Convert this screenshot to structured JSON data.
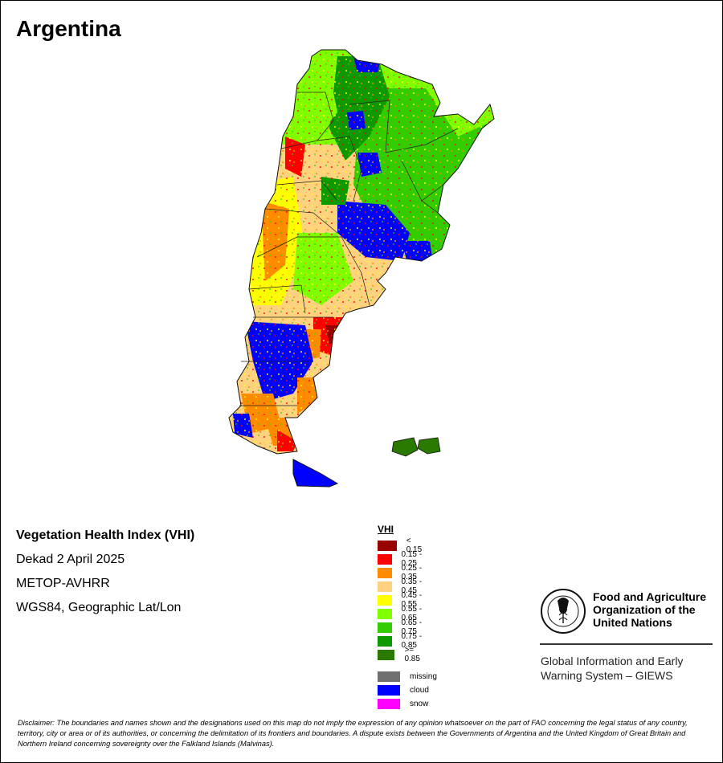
{
  "map_title": "Argentina",
  "info": {
    "index_name": "Vegetation Health Index (VHI)",
    "period": "Dekad 2 April 2025",
    "sensor": "METOP-AVHRR",
    "projection": "WGS84, Geographic Lat/Lon"
  },
  "legend": {
    "title": "VHI",
    "classes": [
      {
        "label": "< 0.15",
        "color": "#990000"
      },
      {
        "label": "0.15 - 0.25",
        "color": "#ff0000"
      },
      {
        "label": "0.25 - 0.35",
        "color": "#ff8c00"
      },
      {
        "label": "0.35 - 0.45",
        "color": "#ffd27f"
      },
      {
        "label": "0.45 - 0.55",
        "color": "#ffff00"
      },
      {
        "label": "0.55 - 0.65",
        "color": "#80ff00"
      },
      {
        "label": "0.65 - 0.75",
        "color": "#33cc00"
      },
      {
        "label": "0.75 - 0.85",
        "color": "#0f9900"
      },
      {
        "label": ">= 0.85",
        "color": "#2b7a00"
      }
    ],
    "other": [
      {
        "label": "missing",
        "color": "#707070"
      },
      {
        "label": "cloud",
        "color": "#0000ff"
      },
      {
        "label": "snow",
        "color": "#ff00ff"
      }
    ]
  },
  "organization": {
    "logo_text": "FAO",
    "logo_ring_text": "FIAT PANIS",
    "name_lines": [
      "Food and Agriculture",
      "Organization of the",
      "United Nations"
    ],
    "system_lines": [
      "Global Information and Early",
      "Warning System – GIEWS"
    ]
  },
  "disclaimer": "Disclaimer: The boundaries and names shown and the designations used on this map do not imply the expression of any opinion whatsoever on the part of FAO concerning the legal status of any country, territory, city or area or of its authorities, or concerning the delimitation of its frontiers and boundaries. A dispute exists between the Governments of Argentina and the United Kingdom of Great Britain and Northern Ireland concerning sovereignty over the Falkland Islands (Malvinas)."
}
